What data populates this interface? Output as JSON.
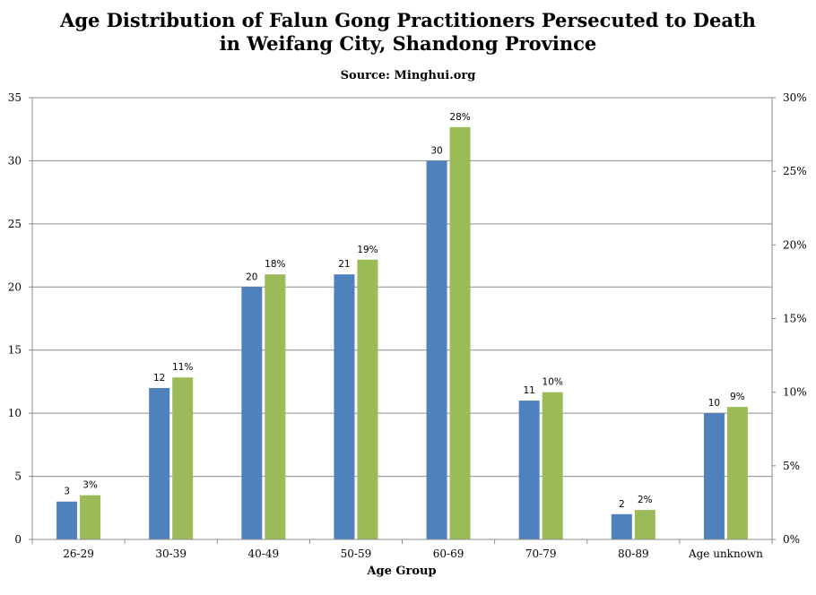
{
  "chart_data": {
    "type": "bar",
    "title_line1": "Age Distribution of Falun Gong Practitioners Persecuted to Death",
    "title_line2": "in Weifang City, Shandong Province",
    "subtitle": "Source: Minghui.org",
    "xlabel": "Age Group",
    "ylabel": "",
    "categories": [
      "26-29",
      "30-39",
      "40-49",
      "50-59",
      "60-69",
      "70-79",
      "80-89",
      "Age unknown"
    ],
    "series": [
      {
        "values": [
          3,
          12,
          20,
          21,
          30,
          11,
          2,
          10
        ],
        "color": "#4f81bd",
        "axis": "left",
        "labels": [
          "3",
          "12",
          "20",
          "21",
          "30",
          "11",
          "2",
          "10"
        ]
      },
      {
        "values": [
          3,
          11,
          18,
          19,
          28,
          10,
          2,
          9
        ],
        "color": "#9bbb59",
        "axis": "right",
        "labels": [
          "3%",
          "11%",
          "18%",
          "19%",
          "28%",
          "10%",
          "2%",
          "9%"
        ]
      }
    ],
    "ylim": [
      0,
      35
    ],
    "yticks": [
      "0",
      "5",
      "10",
      "15",
      "20",
      "25",
      "30",
      "35"
    ],
    "y2lim": [
      0,
      30
    ],
    "y2ticks": [
      "0%",
      "5%",
      "10%",
      "15%",
      "20%",
      "25%",
      "30%"
    ],
    "grid": true,
    "legend": "none"
  }
}
